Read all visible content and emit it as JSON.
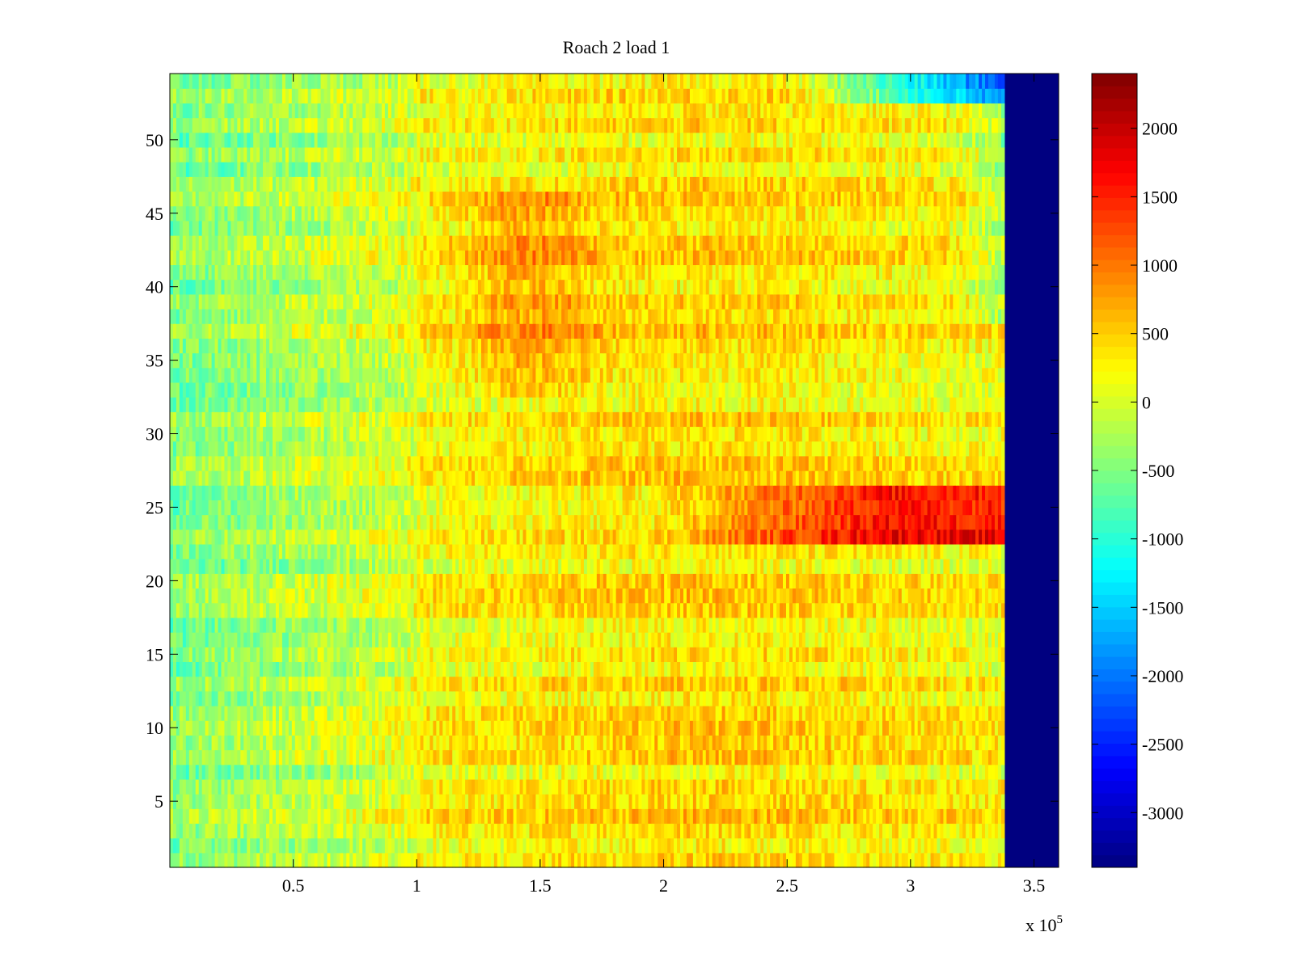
{
  "chart_data": {
    "type": "heatmap",
    "title": "Roach 2 load 1",
    "xlabel": "",
    "ylabel": "",
    "x_multiplier_label": "x 10",
    "x_multiplier_exponent": "5",
    "xlim": [
      0,
      3.6
    ],
    "ylim": [
      0.5,
      54.5
    ],
    "x_ticks": [
      0.5,
      1,
      1.5,
      2,
      2.5,
      3,
      3.5
    ],
    "x_tick_labels": [
      "0.5",
      "1",
      "1.5",
      "2",
      "2.5",
      "3",
      "3.5"
    ],
    "y_ticks": [
      5,
      10,
      15,
      20,
      25,
      30,
      35,
      40,
      45,
      50
    ],
    "y_tick_labels": [
      "5",
      "10",
      "15",
      "20",
      "25",
      "30",
      "35",
      "40",
      "45",
      "50"
    ],
    "rows": 54,
    "data_end_x": 3.38,
    "colormap": "jet",
    "clim": [
      -3400,
      2400
    ],
    "colorbar_ticks": [
      2000,
      1500,
      1000,
      500,
      0,
      -500,
      -1000,
      -1500,
      -2000,
      -2500,
      -3000
    ],
    "colorbar_tick_labels": [
      "2000",
      "1500",
      "1000",
      "500",
      "0",
      "-500",
      "-1000",
      "-1500",
      "-2000",
      "-2500",
      "-3000"
    ],
    "empty_region_value": -3400,
    "notable_features": {
      "hot_band_rows": [
        23,
        24,
        25,
        26
      ],
      "hot_band_x_range": [
        2.0,
        3.38
      ],
      "hot_band_peak_value": 1700,
      "warm_region_rows": [
        33,
        46
      ],
      "warm_region_x_range": [
        1.1,
        1.7
      ],
      "cool_top_right_rows": [
        53,
        54
      ],
      "cool_top_right_x_range": [
        2.5,
        3.38
      ],
      "cool_low_x_range": [
        0,
        1.0
      ],
      "typical_value_range": [
        -1200,
        1000
      ]
    }
  },
  "colors": {
    "frame": "#000000",
    "background": "#ffffff"
  }
}
